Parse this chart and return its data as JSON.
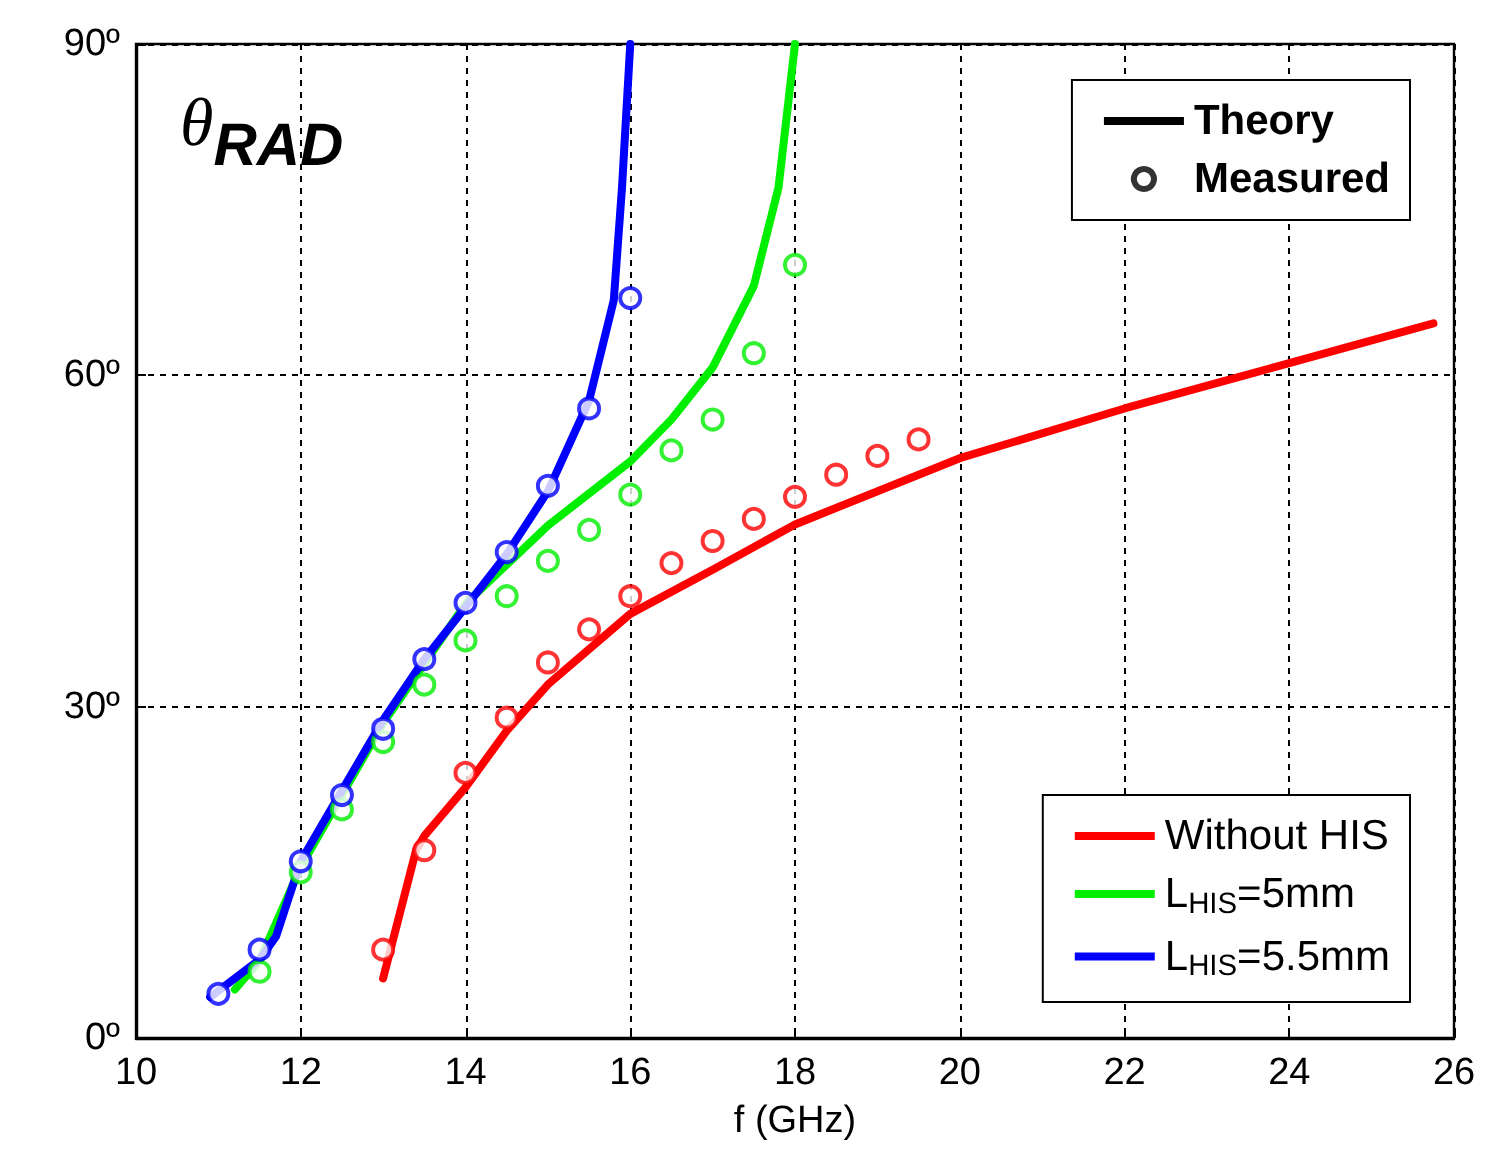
{
  "chart_data": {
    "type": "line",
    "xlabel": "f (GHz)",
    "annotations": [
      "θ$_{RAD}$"
    ],
    "xlim": [
      10,
      26
    ],
    "xticks": [
      10,
      12,
      14,
      16,
      18,
      20,
      22,
      24,
      26
    ],
    "ylim": [
      0,
      90
    ],
    "yticks": [
      {
        "value": 0,
        "label": "0º"
      },
      {
        "value": 30,
        "label": "30º"
      },
      {
        "value": 60,
        "label": "60º"
      },
      {
        "value": 90,
        "label": "90º"
      }
    ],
    "grid": true,
    "legend": "right",
    "series": [
      {
        "name": "Theory",
        "type": "line",
        "color": "#000000",
        "line_style": "solid"
      },
      {
        "name": "Measured",
        "type": "scatter",
        "color": "#000000",
        "marker": "circle"
      },
      {
        "name": "Without HIS",
        "type": "line",
        "color": "#ff0000",
        "line_style": "solid",
        "x": [
          13,
          13.4,
          13.5,
          14,
          14.5,
          15,
          16,
          17,
          18,
          20,
          22,
          24,
          25.75
        ],
        "values": [
          5.4,
          17,
          18.3,
          22.7,
          27.8,
          32,
          38.4,
          42.4,
          46.5,
          52.5,
          57,
          61.1,
          64.7
        ]
      },
      {
        "name": "L$_{HIS}$=5mm",
        "type": "line",
        "color": "#00ee00",
        "line_style": "solid",
        "x": [
          11.2,
          11.5,
          12,
          13,
          14,
          15,
          16,
          16.5,
          17,
          17.5,
          17.8,
          18
        ],
        "values": [
          4.4,
          7,
          15.5,
          28.5,
          39.3,
          46.4,
          52.2,
          56,
          60.7,
          68.1,
          77,
          90
        ]
      },
      {
        "name": "L$_{HIS}$=5.5mm",
        "type": "line",
        "color": "#0000ff",
        "line_style": "solid",
        "x": [
          10.9,
          11.5,
          11.7,
          12,
          12.5,
          13,
          13.5,
          14,
          14.5,
          15,
          15.5,
          15.8,
          15.9,
          16
        ],
        "values": [
          3.7,
          7.1,
          9.2,
          16,
          22.4,
          28.8,
          34.3,
          39,
          43.8,
          49.5,
          57.7,
          66.8,
          77,
          90
        ]
      },
      {
        "type": "scatter",
        "color": "#ff0000",
        "marker": "circle",
        "x": [
          13,
          13.5,
          14,
          14.5,
          15,
          15.5,
          16,
          16.5,
          17,
          17.5,
          18,
          18.5,
          19,
          19.5
        ],
        "values": [
          8,
          17,
          24,
          29,
          34,
          37,
          40,
          43,
          45,
          47,
          49,
          51,
          52.7,
          54.2
        ]
      },
      {
        "type": "scatter",
        "color": "#00ee00",
        "marker": "circle",
        "x": [
          11.5,
          12,
          12.5,
          13,
          13.5,
          14,
          14.5,
          15,
          15.5,
          16,
          16.5,
          17,
          17.5,
          18
        ],
        "values": [
          6,
          15,
          20.7,
          26.8,
          32,
          36,
          40,
          43.2,
          46,
          49.2,
          53.2,
          56,
          62,
          70
        ]
      },
      {
        "type": "scatter",
        "color": "#0000ff",
        "marker": "circle",
        "x": [
          11,
          11.5,
          12,
          12.5,
          13,
          13.5,
          14,
          14.5,
          15,
          15.5,
          16
        ],
        "values": [
          4,
          8,
          16,
          22,
          28,
          34.3,
          39.4,
          44,
          50,
          57,
          67
        ]
      }
    ]
  }
}
